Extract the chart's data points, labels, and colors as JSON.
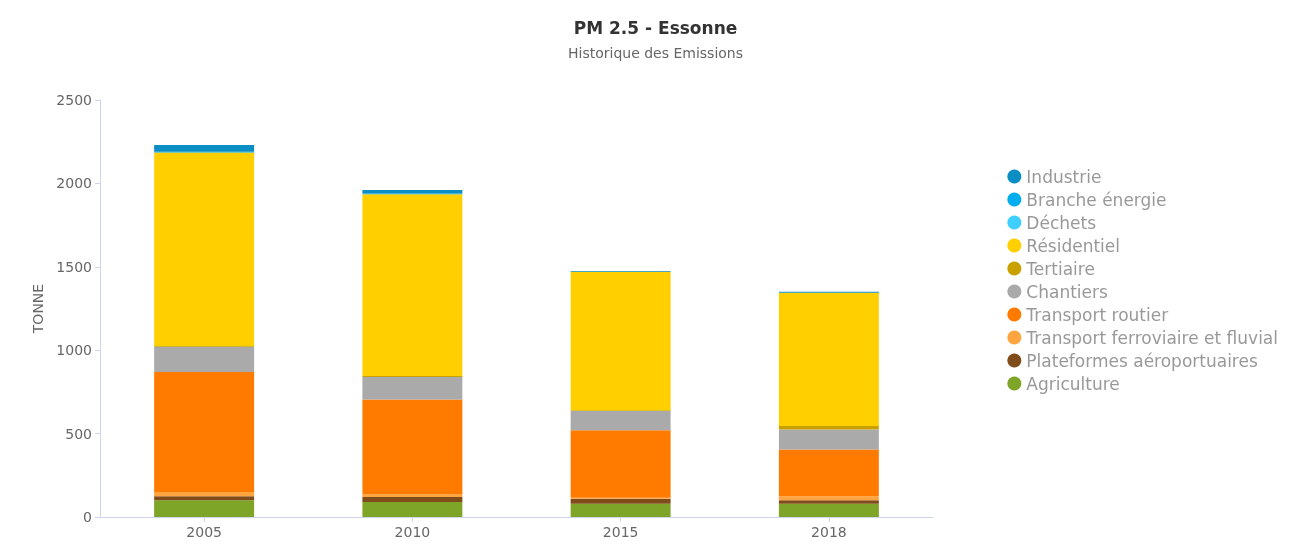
{
  "chart_data": {
    "type": "bar",
    "title": "PM 2.5 - Essonne",
    "subtitle": "Historique des Emissions",
    "ylabel": "TONNE",
    "categories": [
      "2005",
      "2010",
      "2015",
      "2018"
    ],
    "stacked": true,
    "ylim": [
      0,
      2500
    ],
    "yticks": [
      0,
      500,
      1000,
      1500,
      2000,
      2500
    ],
    "grid": false,
    "legend": "right",
    "series": [
      {
        "name": "Agriculture",
        "color": "#7ea428",
        "values": [
          100,
          90,
          80,
          80
        ]
      },
      {
        "name": "Plateformes aéroportuaires",
        "color": "#7f4c1a",
        "values": [
          25,
          30,
          30,
          20
        ]
      },
      {
        "name": "Transport ferroviaire et fluvial",
        "color": "#ffa53f",
        "values": [
          25,
          15,
          5,
          25
        ]
      },
      {
        "name": "Transport routier",
        "color": "#ff7b00",
        "values": [
          720,
          570,
          405,
          280
        ]
      },
      {
        "name": "Chantiers",
        "color": "#aaaaaa",
        "values": [
          150,
          135,
          115,
          120
        ]
      },
      {
        "name": "Tertiaire",
        "color": "#c8a000",
        "values": [
          5,
          5,
          5,
          20
        ]
      },
      {
        "name": "Résidentiel",
        "color": "#ffcf00",
        "values": [
          1160,
          1090,
          830,
          800
        ]
      },
      {
        "name": "Déchets",
        "color": "#3fcfff",
        "values": [
          null,
          null,
          null,
          null
        ]
      },
      {
        "name": "Branche énergie",
        "color": "#00aeef",
        "values": [
          5,
          5,
          0,
          0
        ]
      },
      {
        "name": "Industrie",
        "color": "#0a8ec4",
        "values": [
          40,
          20,
          5,
          5
        ]
      }
    ]
  }
}
